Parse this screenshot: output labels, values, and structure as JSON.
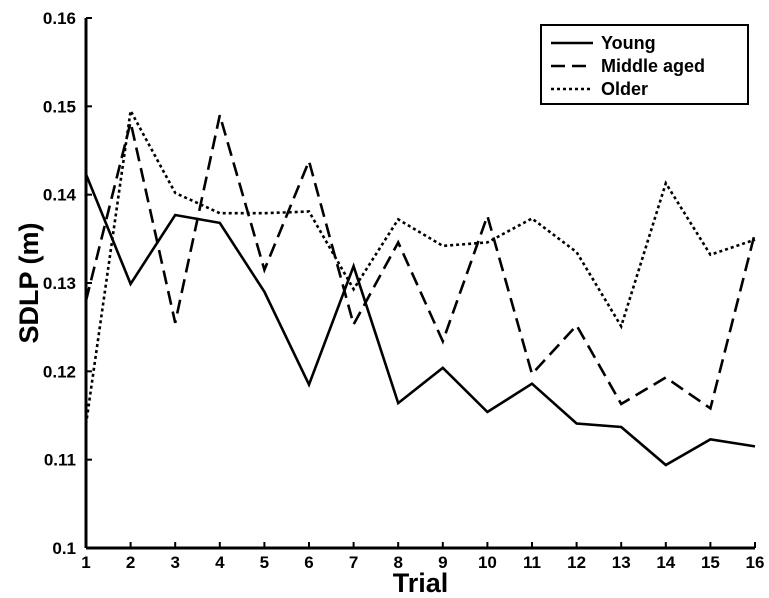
{
  "chart_data": {
    "type": "line",
    "title": "",
    "xlabel": "Trial",
    "ylabel": "SDLP (m)",
    "x": [
      1,
      2,
      3,
      4,
      5,
      6,
      7,
      8,
      9,
      10,
      11,
      12,
      13,
      14,
      15,
      16
    ],
    "xticks": [
      "1",
      "2",
      "3",
      "4",
      "5",
      "6",
      "7",
      "8",
      "9",
      "10",
      "11",
      "12",
      "13",
      "14",
      "15",
      "16"
    ],
    "xlim": [
      1,
      16
    ],
    "ylim": [
      0.1,
      0.16
    ],
    "yticks": [
      "0.1",
      "0.11",
      "0.12",
      "0.13",
      "0.14",
      "0.15",
      "0.16"
    ],
    "yticks_values": [
      0.1,
      0.11,
      0.12,
      0.13,
      0.14,
      0.15,
      0.16
    ],
    "grid": false,
    "legend_position": "top-right",
    "series": [
      {
        "name": "Young",
        "style": "solid",
        "color": "#000000",
        "values": [
          0.1423,
          0.1299,
          0.1377,
          0.1368,
          0.129,
          0.1185,
          0.1319,
          0.1164,
          0.1204,
          0.1154,
          0.1186,
          0.1141,
          0.1137,
          0.1094,
          0.1123,
          0.1115
        ]
      },
      {
        "name": "Middle aged",
        "style": "dashed",
        "color": "#000000",
        "values": [
          0.128,
          0.1482,
          0.1255,
          0.149,
          0.1315,
          0.1438,
          0.1253,
          0.1346,
          0.1234,
          0.1376,
          0.1197,
          0.1252,
          0.1163,
          0.1193,
          0.1158,
          0.1357
        ]
      },
      {
        "name": "Older",
        "style": "dotted",
        "color": "#000000",
        "values": [
          0.114,
          0.1495,
          0.1402,
          0.1379,
          0.1379,
          0.1381,
          0.1293,
          0.1372,
          0.1342,
          0.1346,
          0.1373,
          0.1335,
          0.1251,
          0.1413,
          0.1332,
          0.1349
        ]
      }
    ]
  }
}
